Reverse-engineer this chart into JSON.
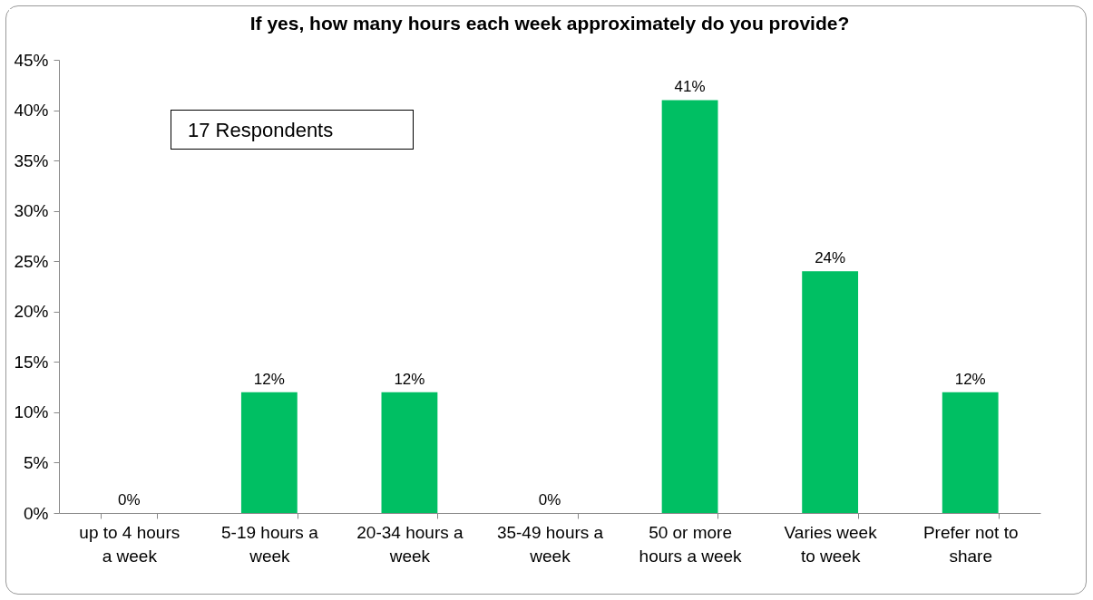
{
  "chart_data": {
    "type": "bar",
    "title": "If yes, how many hours each week approximately do you provide?",
    "categories": [
      "up to 4 hours a week",
      "5-19 hours a week",
      "20-34 hours a week",
      "35-49 hours a week",
      "50 or more hours a week",
      "Varies week to week",
      "Prefer not to share"
    ],
    "values": [
      0,
      12,
      12,
      0,
      41,
      24,
      12
    ],
    "value_labels": [
      "0%",
      "12%",
      "12%",
      "0%",
      "41%",
      "24%",
      "12%"
    ],
    "color": "#00bf63",
    "ylim": [
      0,
      45
    ],
    "yticks": [
      {
        "value": 0,
        "label": "0%"
      },
      {
        "value": 5,
        "label": "5%"
      },
      {
        "value": 10,
        "label": "10%"
      },
      {
        "value": 15,
        "label": "15%"
      },
      {
        "value": 20,
        "label": "20%"
      },
      {
        "value": 25,
        "label": "25%"
      },
      {
        "value": 30,
        "label": "30%"
      },
      {
        "value": 35,
        "label": "35%"
      },
      {
        "value": 40,
        "label": "40%"
      },
      {
        "value": 45,
        "label": "45%"
      }
    ],
    "grid": false,
    "annotations": [
      "17 Respondents"
    ]
  }
}
